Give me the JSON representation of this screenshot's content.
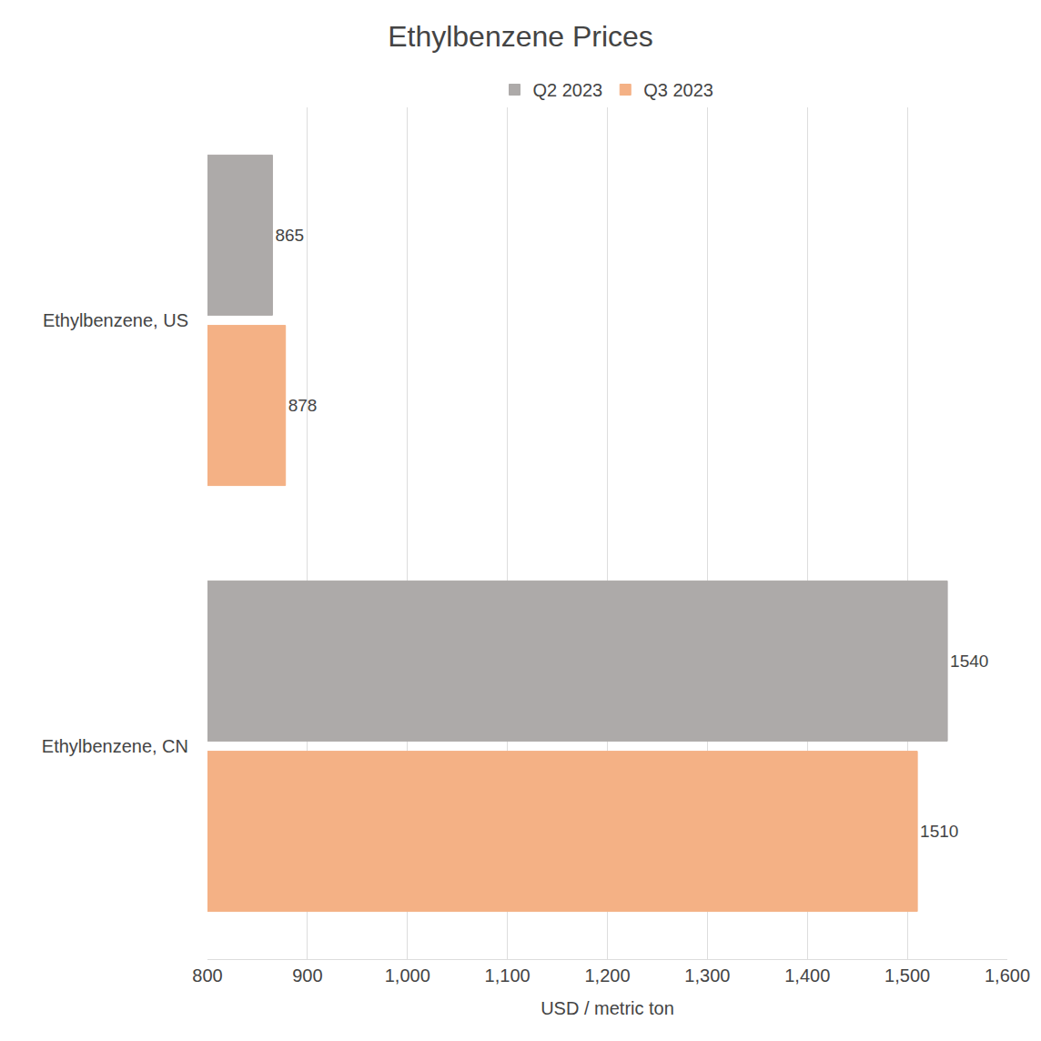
{
  "chart_data": {
    "type": "bar",
    "title": "Ethylbenzene Prices",
    "orientation": "horizontal",
    "categories": [
      "Ethylbenzene, US",
      "Ethylbenzene, CN"
    ],
    "series": [
      {
        "name": "Q2 2023",
        "color": "#adaaa9",
        "values": [
          865,
          1540
        ]
      },
      {
        "name": "Q3 2023",
        "color": "#f4b185",
        "values": [
          878,
          1510
        ]
      }
    ],
    "x_label": "USD / metric ton",
    "xlim": [
      800,
      1600
    ],
    "xticks": [
      800,
      900,
      {
        "value": 1000,
        "label": "1,000"
      },
      {
        "value": 1100,
        "label": "1,100"
      },
      {
        "value": 1200,
        "label": "1,200"
      },
      {
        "value": 1300,
        "label": "1,300"
      },
      {
        "value": 1400,
        "label": "1,400"
      },
      {
        "value": 1500,
        "label": "1,500"
      },
      {
        "value": 1600,
        "label": "1,600"
      }
    ],
    "grid": true,
    "legend": "top",
    "data_labels": true
  }
}
